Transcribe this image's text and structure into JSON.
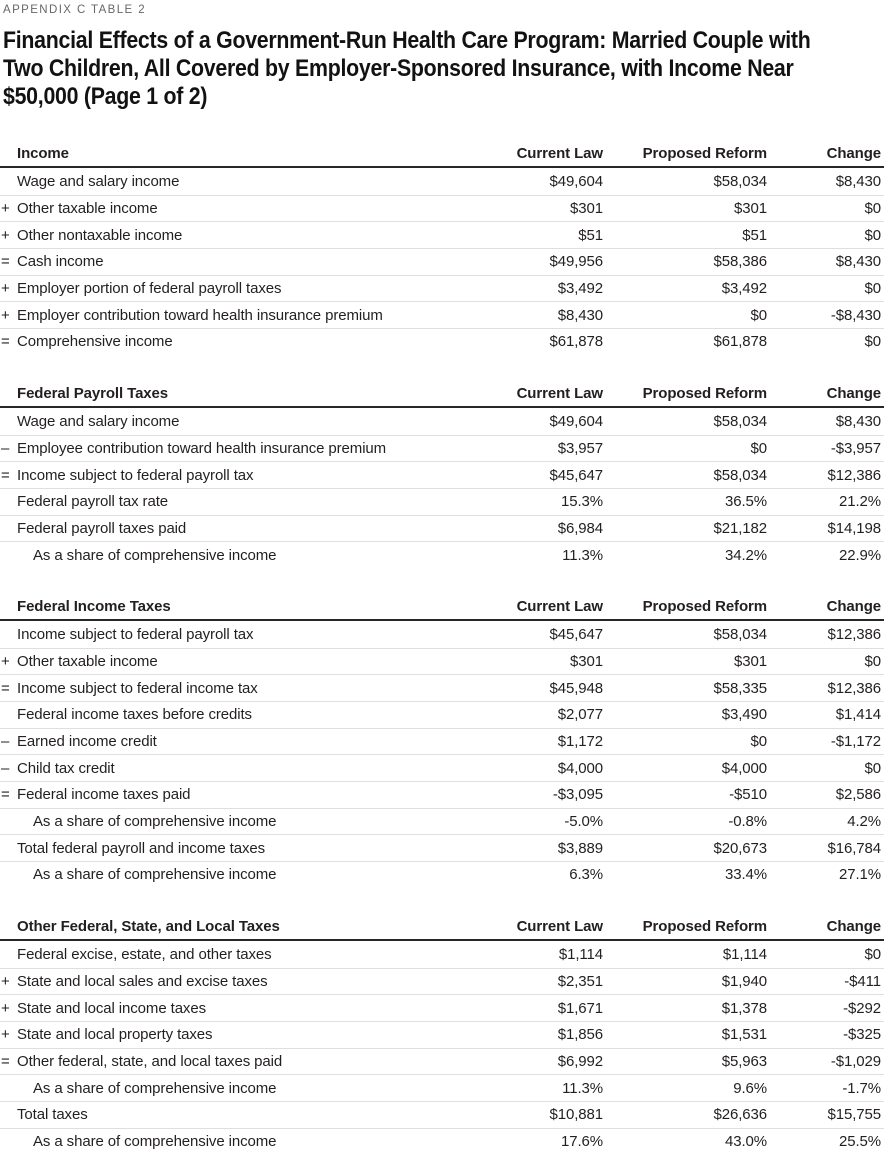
{
  "kicker": "APPENDIX C TABLE 2",
  "title_lines": [
    "Financial Effects of a Government-Run Health Care Program: Married Couple with",
    "Two Children, All Covered by Employer-Sponsored Insurance, with Income Near",
    "$50,000 (Page 1 of 2)"
  ],
  "columns": [
    "Current Law",
    "Proposed Reform",
    "Change"
  ],
  "colors": {
    "text": "#231f20",
    "kicker_gray": "#66676b",
    "rule_heavy": "#27272a",
    "rule_light": "#dddfe1"
  },
  "sections": [
    {
      "heading": "Income",
      "rows": [
        {
          "prefix": "",
          "indent": false,
          "label": "Wage and salary income",
          "values": [
            "$49,604",
            "$58,034",
            "$8,430"
          ]
        },
        {
          "prefix": "+",
          "indent": false,
          "label": "Other taxable income",
          "values": [
            "$301",
            "$301",
            "$0"
          ]
        },
        {
          "prefix": "+",
          "indent": false,
          "label": "Other nontaxable income",
          "values": [
            "$51",
            "$51",
            "$0"
          ]
        },
        {
          "prefix": "=",
          "indent": false,
          "label": "Cash income",
          "values": [
            "$49,956",
            "$58,386",
            "$8,430"
          ]
        },
        {
          "prefix": "+",
          "indent": false,
          "label": "Employer portion of federal payroll taxes",
          "values": [
            "$3,492",
            "$3,492",
            "$0"
          ]
        },
        {
          "prefix": "+",
          "indent": false,
          "label": "Employer contribution toward health insurance premium",
          "values": [
            "$8,430",
            "$0",
            "-$8,430"
          ]
        },
        {
          "prefix": "=",
          "indent": false,
          "label": "Comprehensive income",
          "values": [
            "$61,878",
            "$61,878",
            "$0"
          ]
        }
      ]
    },
    {
      "heading": "Federal Payroll Taxes",
      "rows": [
        {
          "prefix": "",
          "indent": false,
          "label": "Wage and salary income",
          "values": [
            "$49,604",
            "$58,034",
            "$8,430"
          ]
        },
        {
          "prefix": "–",
          "indent": false,
          "label": "Employee contribution toward health insurance premium",
          "values": [
            "$3,957",
            "$0",
            "-$3,957"
          ]
        },
        {
          "prefix": "=",
          "indent": false,
          "label": "Income subject to federal payroll tax",
          "values": [
            "$45,647",
            "$58,034",
            "$12,386"
          ]
        },
        {
          "prefix": "",
          "indent": false,
          "label": "Federal payroll tax rate",
          "values": [
            "15.3%",
            "36.5%",
            "21.2%"
          ]
        },
        {
          "prefix": "",
          "indent": false,
          "label": "Federal payroll taxes paid",
          "values": [
            "$6,984",
            "$21,182",
            "$14,198"
          ]
        },
        {
          "prefix": "",
          "indent": true,
          "label": "As a share of comprehensive income",
          "values": [
            "11.3%",
            "34.2%",
            "22.9%"
          ]
        }
      ]
    },
    {
      "heading": "Federal Income Taxes",
      "rows": [
        {
          "prefix": "",
          "indent": false,
          "label": "Income subject to federal payroll tax",
          "values": [
            "$45,647",
            "$58,034",
            "$12,386"
          ]
        },
        {
          "prefix": "+",
          "indent": false,
          "label": "Other taxable income",
          "values": [
            "$301",
            "$301",
            "$0"
          ]
        },
        {
          "prefix": "=",
          "indent": false,
          "label": "Income subject to federal income tax",
          "values": [
            "$45,948",
            "$58,335",
            "$12,386"
          ]
        },
        {
          "prefix": "",
          "indent": false,
          "label": "Federal income taxes before credits",
          "values": [
            "$2,077",
            "$3,490",
            "$1,414"
          ]
        },
        {
          "prefix": "–",
          "indent": false,
          "label": "Earned income credit",
          "values": [
            "$1,172",
            "$0",
            "-$1,172"
          ]
        },
        {
          "prefix": "–",
          "indent": false,
          "label": "Child tax credit",
          "values": [
            "$4,000",
            "$4,000",
            "$0"
          ]
        },
        {
          "prefix": "=",
          "indent": false,
          "label": "Federal income taxes paid",
          "values": [
            "-$3,095",
            "-$510",
            "$2,586"
          ]
        },
        {
          "prefix": "",
          "indent": true,
          "label": "As a share of comprehensive income",
          "values": [
            "-5.0%",
            "-0.8%",
            "4.2%"
          ]
        },
        {
          "prefix": "",
          "indent": false,
          "label": "Total federal payroll and income taxes",
          "values": [
            "$3,889",
            "$20,673",
            "$16,784"
          ]
        },
        {
          "prefix": "",
          "indent": true,
          "label": "As a share of comprehensive income",
          "values": [
            "6.3%",
            "33.4%",
            "27.1%"
          ]
        }
      ]
    },
    {
      "heading": "Other Federal, State, and Local Taxes",
      "rows": [
        {
          "prefix": "",
          "indent": false,
          "label": "Federal excise, estate, and other taxes",
          "values": [
            "$1,114",
            "$1,114",
            "$0"
          ]
        },
        {
          "prefix": "+",
          "indent": false,
          "label": "State and local sales and excise taxes",
          "values": [
            "$2,351",
            "$1,940",
            "-$411"
          ]
        },
        {
          "prefix": "+",
          "indent": false,
          "label": "State and local income taxes",
          "values": [
            "$1,671",
            "$1,378",
            "-$292"
          ]
        },
        {
          "prefix": "+",
          "indent": false,
          "label": "State and local property taxes",
          "values": [
            "$1,856",
            "$1,531",
            "-$325"
          ]
        },
        {
          "prefix": "=",
          "indent": false,
          "label": "Other federal, state, and local taxes paid",
          "values": [
            "$6,992",
            "$5,963",
            "-$1,029"
          ]
        },
        {
          "prefix": "",
          "indent": true,
          "label": "As a share of comprehensive income",
          "values": [
            "11.3%",
            "9.6%",
            "-1.7%"
          ]
        },
        {
          "prefix": "",
          "indent": false,
          "label": "Total taxes",
          "values": [
            "$10,881",
            "$26,636",
            "$15,755"
          ]
        },
        {
          "prefix": "",
          "indent": true,
          "label": "As a share of comprehensive income",
          "values": [
            "17.6%",
            "43.0%",
            "25.5%"
          ]
        }
      ]
    }
  ]
}
